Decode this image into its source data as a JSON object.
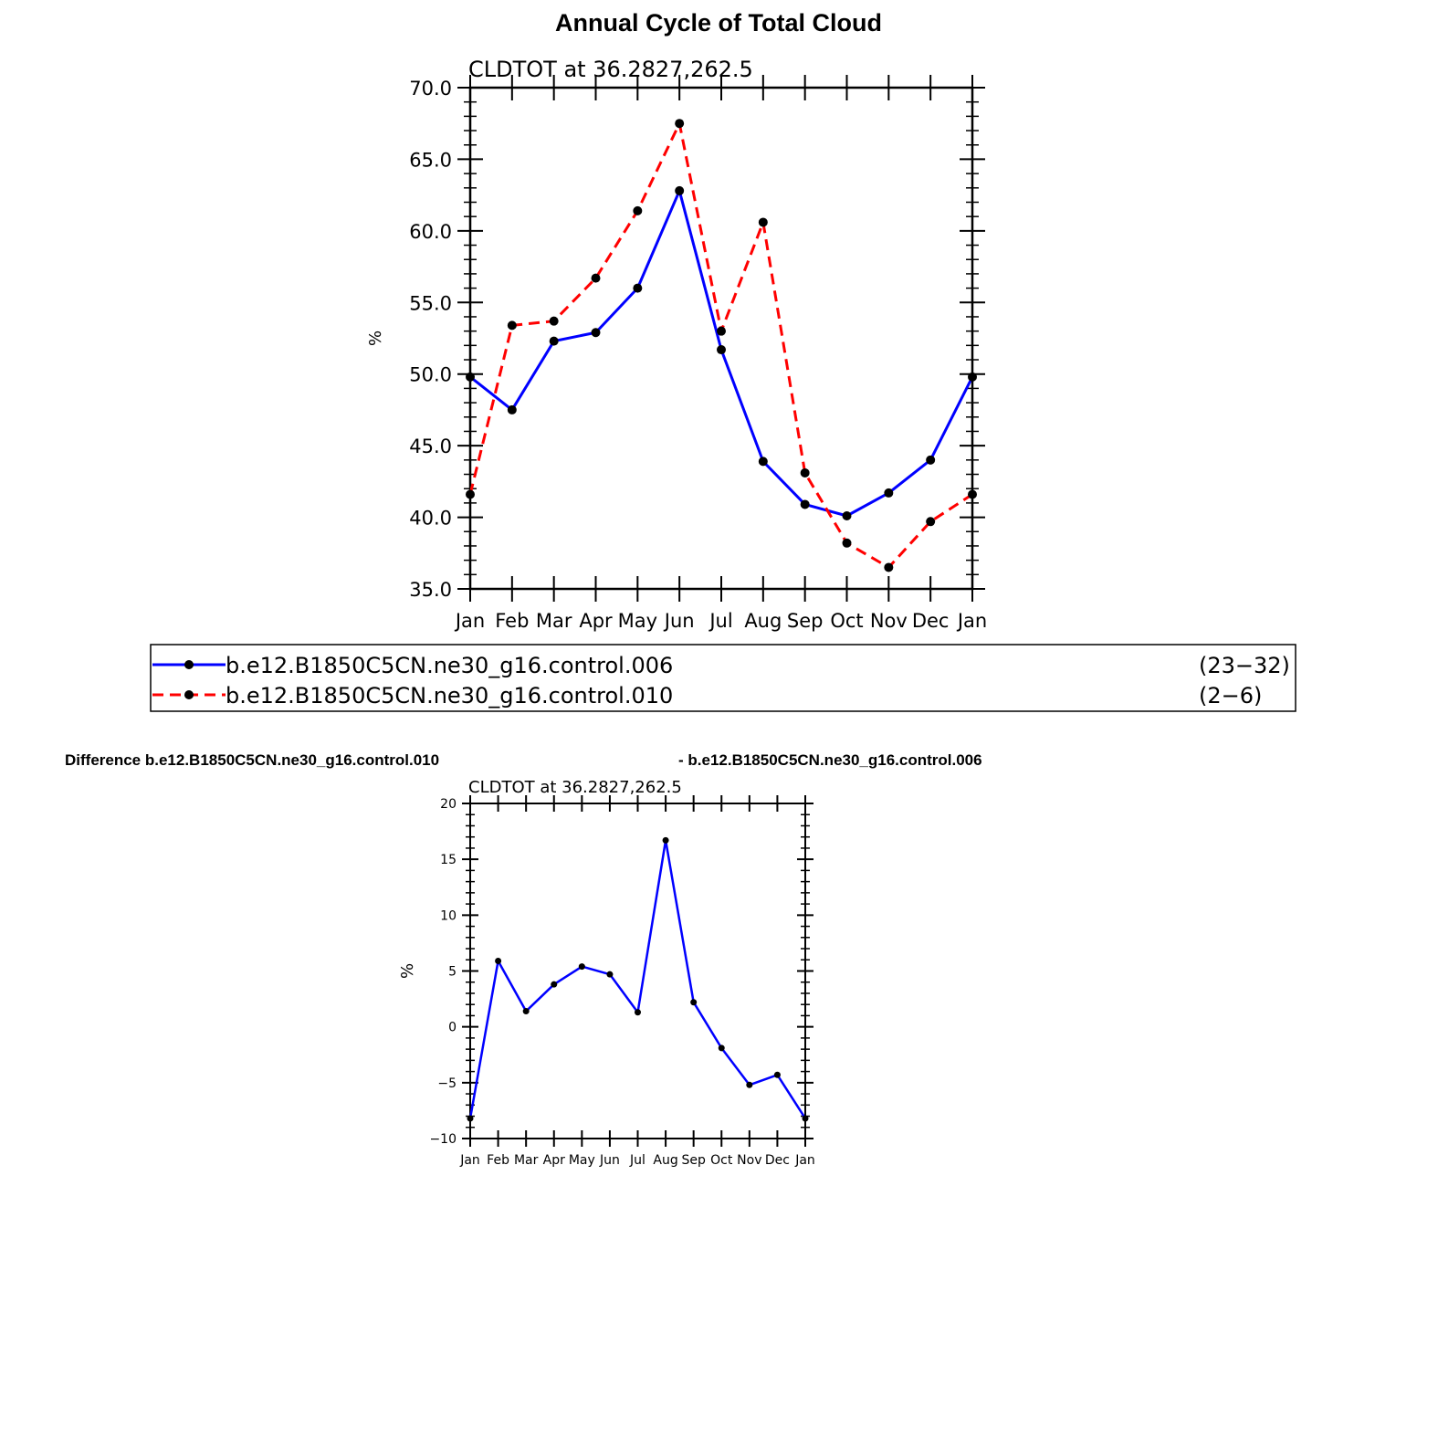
{
  "page_title": "Annual Cycle of Total Cloud",
  "legend": {
    "entries": [
      {
        "label": "b.e12.B1850C5CN.ne30_g16.control.006",
        "years": "(23−32)",
        "color": "#0000ff",
        "dash": "solid"
      },
      {
        "label": "b.e12.B1850C5CN.ne30_g16.control.010",
        "years": "(2−6)",
        "color": "#ff0000",
        "dash": "dashed"
      }
    ]
  },
  "difference": {
    "left_label": "Difference b.e12.B1850C5CN.ne30_g16.control.010",
    "right_label": "- b.e12.B1850C5CN.ne30_g16.control.006"
  },
  "chart_data": [
    {
      "type": "line",
      "title": "Annual Cycle of Total Cloud",
      "subtitle": "CLDTOT  at  36.2827,262.5",
      "ylabel": "%",
      "categories": [
        "Jan",
        "Feb",
        "Mar",
        "Apr",
        "May",
        "Jun",
        "Jul",
        "Aug",
        "Sep",
        "Oct",
        "Nov",
        "Dec",
        "Jan"
      ],
      "ylim": [
        35,
        70
      ],
      "yticks": [
        "35.0",
        "40.0",
        "45.0",
        "50.0",
        "55.0",
        "60.0",
        "65.0",
        "70.0"
      ],
      "series": [
        {
          "name": "b.e12.B1850C5CN.ne30_g16.control.006",
          "color": "#0000ff",
          "dash": "solid",
          "values": [
            49.8,
            47.5,
            52.3,
            52.9,
            56.0,
            62.8,
            51.7,
            43.9,
            40.9,
            40.1,
            41.7,
            44.0,
            49.8
          ]
        },
        {
          "name": "b.e12.B1850C5CN.ne30_g16.control.010",
          "color": "#ff0000",
          "dash": "dashed",
          "values": [
            41.6,
            53.4,
            53.7,
            56.7,
            61.4,
            67.5,
            53.0,
            60.6,
            43.1,
            38.2,
            36.5,
            39.7,
            41.6
          ]
        }
      ]
    },
    {
      "type": "line",
      "subtitle": "CLDTOT  at  36.2827,262.5",
      "ylabel": "%",
      "categories": [
        "Jan",
        "Feb",
        "Mar",
        "Apr",
        "May",
        "Jun",
        "Jul",
        "Aug",
        "Sep",
        "Oct",
        "Nov",
        "Dec",
        "Jan"
      ],
      "ylim": [
        -10,
        20
      ],
      "yticks": [
        "−10",
        "−5",
        "0",
        "5",
        "10",
        "15",
        "20"
      ],
      "series": [
        {
          "color": "#0000ff",
          "dash": "solid",
          "values": [
            -8.2,
            5.9,
            1.4,
            3.8,
            5.4,
            4.7,
            1.3,
            16.7,
            2.2,
            -1.9,
            -5.2,
            -4.3,
            -8.2
          ]
        }
      ]
    }
  ]
}
